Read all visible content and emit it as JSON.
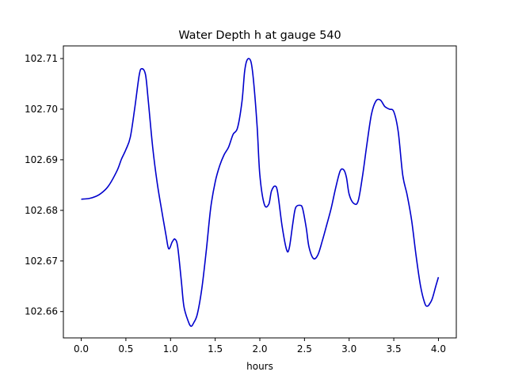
{
  "chart_data": {
    "type": "line",
    "title": "Water Depth h at gauge 540",
    "xlabel": "hours",
    "ylabel": "",
    "xlim": [
      -0.2,
      4.2
    ],
    "ylim": [
      102.6548,
      102.7125
    ],
    "xticks": [
      0.0,
      0.5,
      1.0,
      1.5,
      2.0,
      2.5,
      3.0,
      3.5,
      4.0
    ],
    "xtick_labels": [
      "0.0",
      "0.5",
      "1.0",
      "1.5",
      "2.0",
      "2.5",
      "3.0",
      "3.5",
      "4.0"
    ],
    "yticks": [
      102.66,
      102.67,
      102.68,
      102.69,
      102.7,
      102.71
    ],
    "ytick_labels": [
      "102.66",
      "102.67",
      "102.68",
      "102.69",
      "102.70",
      "102.71"
    ],
    "grid": false,
    "legend": "none",
    "series": [
      {
        "color": "#0000cc",
        "x": [
          0.0,
          0.1,
          0.2,
          0.3,
          0.4,
          0.45,
          0.5,
          0.55,
          0.6,
          0.65,
          0.68,
          0.72,
          0.75,
          0.8,
          0.85,
          0.9,
          0.95,
          0.98,
          1.02,
          1.05,
          1.08,
          1.12,
          1.15,
          1.2,
          1.23,
          1.26,
          1.3,
          1.35,
          1.4,
          1.45,
          1.5,
          1.55,
          1.6,
          1.65,
          1.7,
          1.75,
          1.8,
          1.83,
          1.86,
          1.9,
          1.93,
          1.97,
          2.0,
          2.05,
          2.1,
          2.13,
          2.17,
          2.2,
          2.25,
          2.3,
          2.33,
          2.37,
          2.4,
          2.45,
          2.48,
          2.52,
          2.55,
          2.6,
          2.65,
          2.7,
          2.75,
          2.8,
          2.85,
          2.9,
          2.94,
          2.97,
          3.0,
          3.05,
          3.1,
          3.15,
          3.2,
          3.25,
          3.3,
          3.35,
          3.4,
          3.45,
          3.5,
          3.55,
          3.6,
          3.65,
          3.7,
          3.75,
          3.8,
          3.85,
          3.88,
          3.9,
          3.93,
          3.97,
          4.0
        ],
        "y": [
          102.6822,
          102.6824,
          102.6831,
          102.6847,
          102.6878,
          102.6901,
          102.692,
          102.6945,
          102.7003,
          102.7068,
          102.708,
          102.7068,
          102.7018,
          102.6925,
          102.6855,
          102.6801,
          102.675,
          102.6724,
          102.6738,
          102.6743,
          102.6728,
          102.6662,
          102.661,
          102.658,
          102.6571,
          102.6578,
          102.6595,
          102.6645,
          102.672,
          102.6805,
          102.6856,
          102.6888,
          102.691,
          102.6925,
          102.695,
          102.6963,
          102.7015,
          102.7075,
          102.7098,
          102.7094,
          102.7055,
          102.6965,
          102.687,
          102.6812,
          102.6812,
          102.6838,
          102.6848,
          102.6835,
          102.6768,
          102.6722,
          102.6726,
          102.6775,
          102.6805,
          102.681,
          102.6803,
          102.6765,
          102.6728,
          102.6705,
          102.6712,
          102.674,
          102.6772,
          102.6805,
          102.6845,
          102.6878,
          102.688,
          102.6865,
          102.6832,
          102.6814,
          102.6818,
          102.6868,
          102.6932,
          102.699,
          102.7016,
          102.7018,
          102.7005,
          102.7,
          102.6995,
          102.6955,
          102.687,
          102.683,
          102.678,
          102.671,
          102.665,
          102.6615,
          102.6611,
          102.6615,
          102.6625,
          102.665,
          102.6668
        ]
      }
    ]
  }
}
